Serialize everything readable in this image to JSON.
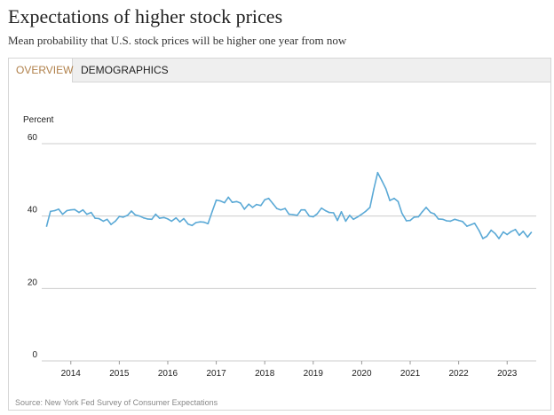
{
  "header": {
    "title": "Expectations of higher stock prices",
    "subtitle": "Mean probability that U.S. stock prices will be higher one year from now"
  },
  "tabs": [
    {
      "label": "OVERVIEW",
      "active": true
    },
    {
      "label": "DEMOGRAPHICS",
      "active": false
    }
  ],
  "source": "Source: New York Fed Survey of Consumer Expectations",
  "colors": {
    "line": "#5aa9d6",
    "grid": "#cccccc",
    "active_tab": "#b0804a"
  },
  "chart_data": {
    "type": "line",
    "title": "",
    "ylabel": "Percent",
    "xlabel": "",
    "ylim": [
      0,
      60
    ],
    "yticks": [
      "60",
      "40",
      "20",
      "0"
    ],
    "ytick_values": [
      60,
      40,
      20,
      0
    ],
    "xticks": [
      "2014",
      "2015",
      "2016",
      "2017",
      "2018",
      "2019",
      "2020",
      "2021",
      "2022",
      "2023"
    ],
    "xtick_values": [
      2014,
      2015,
      2016,
      2017,
      2018,
      2019,
      2020,
      2021,
      2022,
      2023
    ],
    "xlim": [
      2013.4,
      2023.6
    ],
    "grid": true,
    "series": [
      {
        "x": [
          2013.5,
          2013.58,
          2013.67,
          2013.75,
          2013.83,
          2013.92,
          2014.0,
          2014.08,
          2014.17,
          2014.25,
          2014.33,
          2014.42,
          2014.5,
          2014.58,
          2014.67,
          2014.75,
          2014.83,
          2014.92,
          2015.0,
          2015.08,
          2015.17,
          2015.25,
          2015.33,
          2015.42,
          2015.5,
          2015.58,
          2015.67,
          2015.75,
          2015.83,
          2015.92,
          2016.0,
          2016.08,
          2016.17,
          2016.25,
          2016.33,
          2016.42,
          2016.5,
          2016.58,
          2016.67,
          2016.75,
          2016.83,
          2016.92,
          2017.0,
          2017.08,
          2017.17,
          2017.25,
          2017.33,
          2017.42,
          2017.5,
          2017.58,
          2017.67,
          2017.75,
          2017.83,
          2017.92,
          2018.0,
          2018.08,
          2018.17,
          2018.25,
          2018.33,
          2018.42,
          2018.5,
          2018.58,
          2018.67,
          2018.75,
          2018.83,
          2018.92,
          2019.0,
          2019.08,
          2019.17,
          2019.25,
          2019.33,
          2019.42,
          2019.5,
          2019.58,
          2019.67,
          2019.75,
          2019.83,
          2019.92,
          2020.0,
          2020.08,
          2020.17,
          2020.25,
          2020.33,
          2020.42,
          2020.5,
          2020.58,
          2020.67,
          2020.75,
          2020.83,
          2020.92,
          2021.0,
          2021.08,
          2021.17,
          2021.25,
          2021.33,
          2021.42,
          2021.5,
          2021.58,
          2021.67,
          2021.75,
          2021.83,
          2021.92,
          2022.0,
          2022.08,
          2022.17,
          2022.25,
          2022.33,
          2022.42,
          2022.5,
          2022.58,
          2022.67,
          2022.75,
          2022.83,
          2022.92,
          2023.0,
          2023.08,
          2023.17,
          2023.25,
          2023.33,
          2023.42,
          2023.5
        ],
        "values": [
          37.2,
          41.3,
          41.5,
          41.9,
          40.5,
          41.5,
          41.7,
          41.8,
          41.0,
          41.7,
          40.5,
          41.0,
          39.4,
          39.3,
          38.6,
          39.1,
          37.7,
          38.6,
          39.9,
          39.7,
          40.2,
          41.4,
          40.3,
          40.0,
          39.5,
          39.2,
          39.1,
          40.5,
          39.4,
          39.6,
          39.2,
          38.6,
          39.5,
          38.4,
          39.3,
          37.8,
          37.4,
          38.2,
          38.4,
          38.3,
          37.9,
          41.4,
          44.4,
          44.2,
          43.7,
          45.2,
          43.8,
          44.0,
          43.6,
          41.9,
          43.3,
          42.4,
          43.2,
          42.9,
          44.5,
          44.9,
          43.4,
          42.1,
          41.7,
          42.1,
          40.5,
          40.4,
          40.2,
          41.7,
          41.7,
          40.0,
          39.8,
          40.6,
          42.2,
          41.5,
          41.0,
          40.9,
          38.8,
          41.2,
          38.6,
          40.2,
          39.1,
          39.8,
          40.5,
          41.3,
          42.4,
          47.5,
          52.0,
          49.7,
          47.5,
          44.3,
          44.9,
          44.0,
          40.8,
          38.7,
          38.8,
          39.7,
          39.8,
          41.2,
          42.4,
          41.0,
          40.6,
          39.2,
          39.1,
          38.7,
          38.6,
          39.1,
          38.8,
          38.5,
          37.2,
          37.6,
          38.0,
          36.0,
          33.8,
          34.4,
          36.1,
          35.2,
          33.8,
          35.6,
          34.9,
          35.7,
          36.3,
          34.7,
          35.8,
          34.2,
          35.5
        ]
      }
    ]
  }
}
